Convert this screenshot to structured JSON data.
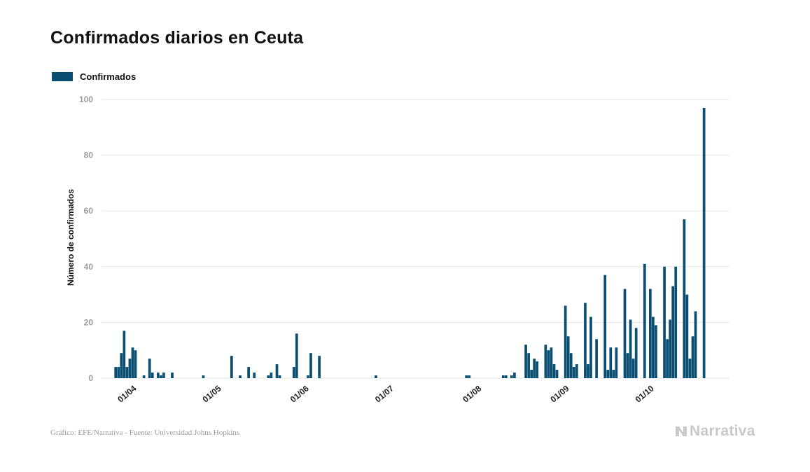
{
  "title": "Confirmados diarios en Ceuta",
  "legend_label": "Confirmados",
  "source": "Gráfico: EFE/Narrativa - Fuente: Universidad Johns Hopkins",
  "logo_text": "Narrativa",
  "colors": {
    "bar": "#0a4f72",
    "grid": "#e6e6e6",
    "logo": "#c9c9c9"
  },
  "chart_data": {
    "type": "bar",
    "title": "Confirmados diarios en Ceuta",
    "ylabel": "Número de confirmados",
    "xlabel": "",
    "ylim": [
      0,
      100
    ],
    "yticks": [
      0,
      20,
      40,
      60,
      80,
      100
    ],
    "grid": true,
    "legend_position": "top-left",
    "xrange": [
      "2020-03-23",
      "2020-10-31"
    ],
    "xticks": [
      {
        "date": "2020-04-01",
        "label": "01/04"
      },
      {
        "date": "2020-05-01",
        "label": "01/05"
      },
      {
        "date": "2020-06-01",
        "label": "01/06"
      },
      {
        "date": "2020-07-01",
        "label": "01/07"
      },
      {
        "date": "2020-08-01",
        "label": "01/08"
      },
      {
        "date": "2020-09-01",
        "label": "01/09"
      },
      {
        "date": "2020-10-01",
        "label": "01/10"
      }
    ],
    "series": [
      {
        "name": "Confirmados",
        "points": [
          [
            "2020-03-28",
            4
          ],
          [
            "2020-03-29",
            4
          ],
          [
            "2020-03-30",
            9
          ],
          [
            "2020-03-31",
            17
          ],
          [
            "2020-04-01",
            4
          ],
          [
            "2020-04-02",
            7
          ],
          [
            "2020-04-03",
            11
          ],
          [
            "2020-04-04",
            10
          ],
          [
            "2020-04-07",
            1
          ],
          [
            "2020-04-09",
            7
          ],
          [
            "2020-04-10",
            2
          ],
          [
            "2020-04-12",
            2
          ],
          [
            "2020-04-13",
            1
          ],
          [
            "2020-04-14",
            2
          ],
          [
            "2020-04-17",
            2
          ],
          [
            "2020-04-28",
            1
          ],
          [
            "2020-05-08",
            8
          ],
          [
            "2020-05-11",
            1
          ],
          [
            "2020-05-14",
            4
          ],
          [
            "2020-05-16",
            2
          ],
          [
            "2020-05-21",
            1
          ],
          [
            "2020-05-22",
            2
          ],
          [
            "2020-05-24",
            5
          ],
          [
            "2020-05-25",
            1
          ],
          [
            "2020-05-30",
            4
          ],
          [
            "2020-05-31",
            16
          ],
          [
            "2020-06-04",
            1
          ],
          [
            "2020-06-05",
            9
          ],
          [
            "2020-06-08",
            8
          ],
          [
            "2020-06-28",
            1
          ],
          [
            "2020-07-30",
            1
          ],
          [
            "2020-07-31",
            1
          ],
          [
            "2020-08-12",
            1
          ],
          [
            "2020-08-13",
            1
          ],
          [
            "2020-08-15",
            1
          ],
          [
            "2020-08-16",
            2
          ],
          [
            "2020-08-20",
            12
          ],
          [
            "2020-08-21",
            9
          ],
          [
            "2020-08-22",
            3
          ],
          [
            "2020-08-23",
            7
          ],
          [
            "2020-08-24",
            6
          ],
          [
            "2020-08-27",
            12
          ],
          [
            "2020-08-28",
            10
          ],
          [
            "2020-08-29",
            11
          ],
          [
            "2020-08-30",
            5
          ],
          [
            "2020-08-31",
            3
          ],
          [
            "2020-09-03",
            26
          ],
          [
            "2020-09-04",
            15
          ],
          [
            "2020-09-05",
            9
          ],
          [
            "2020-09-06",
            4
          ],
          [
            "2020-09-07",
            5
          ],
          [
            "2020-09-10",
            27
          ],
          [
            "2020-09-11",
            5
          ],
          [
            "2020-09-12",
            22
          ],
          [
            "2020-09-14",
            14
          ],
          [
            "2020-09-17",
            37
          ],
          [
            "2020-09-18",
            3
          ],
          [
            "2020-09-19",
            11
          ],
          [
            "2020-09-20",
            3
          ],
          [
            "2020-09-21",
            11
          ],
          [
            "2020-09-24",
            32
          ],
          [
            "2020-09-25",
            9
          ],
          [
            "2020-09-26",
            21
          ],
          [
            "2020-09-27",
            7
          ],
          [
            "2020-09-28",
            18
          ],
          [
            "2020-10-01",
            41
          ],
          [
            "2020-10-03",
            32
          ],
          [
            "2020-10-04",
            22
          ],
          [
            "2020-10-05",
            19
          ],
          [
            "2020-10-08",
            40
          ],
          [
            "2020-10-09",
            14
          ],
          [
            "2020-10-10",
            21
          ],
          [
            "2020-10-11",
            33
          ],
          [
            "2020-10-12",
            40
          ],
          [
            "2020-10-15",
            57
          ],
          [
            "2020-10-16",
            30
          ],
          [
            "2020-10-17",
            7
          ],
          [
            "2020-10-18",
            15
          ],
          [
            "2020-10-19",
            24
          ],
          [
            "2020-10-22",
            97
          ]
        ]
      }
    ]
  }
}
